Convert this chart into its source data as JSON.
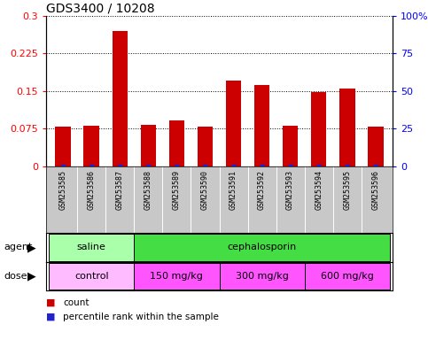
{
  "title": "GDS3400 / 10208",
  "samples": [
    "GSM253585",
    "GSM253586",
    "GSM253587",
    "GSM253588",
    "GSM253589",
    "GSM253590",
    "GSM253591",
    "GSM253592",
    "GSM253593",
    "GSM253594",
    "GSM253595",
    "GSM253596"
  ],
  "count_values": [
    0.08,
    0.082,
    0.27,
    0.083,
    0.092,
    0.08,
    0.172,
    0.163,
    0.082,
    0.149,
    0.155,
    0.08
  ],
  "percentile_values": [
    0.063,
    0.004,
    0.11,
    0.055,
    0.068,
    0.004,
    0.095,
    0.095,
    0.004,
    0.08,
    0.09,
    0.004
  ],
  "ylim_left": [
    0,
    0.3
  ],
  "ylim_right": [
    0,
    100
  ],
  "yticks_left": [
    0,
    0.075,
    0.15,
    0.225,
    0.3
  ],
  "yticks_right": [
    0,
    25,
    50,
    75,
    100
  ],
  "bar_color": "#CC0000",
  "dot_color": "#2222CC",
  "agent_groups": [
    {
      "label": "saline",
      "start": 0,
      "end": 3,
      "color": "#AAFFAA"
    },
    {
      "label": "cephalosporin",
      "start": 3,
      "end": 12,
      "color": "#44DD44"
    }
  ],
  "dose_groups": [
    {
      "label": "control",
      "start": 0,
      "end": 3,
      "color": "#FFBBFF"
    },
    {
      "label": "150 mg/kg",
      "start": 3,
      "end": 6,
      "color": "#FF55FF"
    },
    {
      "label": "300 mg/kg",
      "start": 6,
      "end": 9,
      "color": "#FF55FF"
    },
    {
      "label": "600 mg/kg",
      "start": 9,
      "end": 12,
      "color": "#FF55FF"
    }
  ],
  "legend_count_color": "#CC0000",
  "legend_percentile_color": "#2222CC",
  "title_fontsize": 10,
  "label_gray": "#C8C8C8"
}
